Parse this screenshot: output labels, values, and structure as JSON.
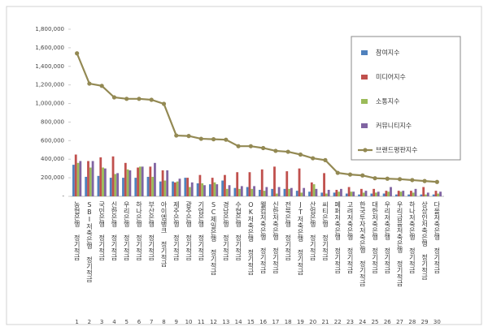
{
  "chart_data": {
    "type": "bar_line",
    "categories": [
      "농협은행 정기적금",
      "SBI저축은행 정기적금",
      "국민은행 정기적금",
      "신한은행 정기적금",
      "우리은행 정기적금",
      "하나은행 정기적금",
      "부산은행 정기적금",
      "아이엠뱅크 정기적금",
      "제주은행 정기적금",
      "광주은행 정기적금",
      "기업은행 정기적금",
      "SC제일은행 정기적금",
      "경남은행 정기적금",
      "수협은행 정기적금",
      "OK저축은행 정기적금",
      "웰컴저축은행 정기적금",
      "신한저축은행 정기적금",
      "전북은행 정기적금",
      "JT저축은행 정기적금",
      "산업은행 정기적금",
      "씨티은행 정기적금",
      "페퍼저축은행 정기적금",
      "고려저축은행 정기적금",
      "한국투자저축은행 정기적금",
      "대한저축은행 정기적금",
      "우리저축은행 정기적금",
      "우리금융저축은행 정기적금",
      "하나저축은행 정기적금",
      "상상인저축은행 정기적금",
      "다올저축은행 정기적금"
    ],
    "ranks": [
      1,
      2,
      3,
      4,
      5,
      6,
      7,
      8,
      9,
      10,
      11,
      12,
      13,
      14,
      15,
      16,
      17,
      18,
      19,
      20,
      21,
      22,
      23,
      24,
      25,
      26,
      27,
      28,
      29,
      30
    ],
    "series": [
      {
        "name": "참여지수",
        "type": "bar",
        "color": "#4f81bd",
        "values": [
          340000,
          210000,
          220000,
          200000,
          200000,
          200000,
          210000,
          160000,
          160000,
          200000,
          140000,
          130000,
          170000,
          90000,
          100000,
          70000,
          80000,
          80000,
          60000,
          50000,
          40000,
          40000,
          30000,
          20000,
          30000,
          30000,
          20000,
          20000,
          20000,
          20000
        ]
      },
      {
        "name": "미디어지수",
        "type": "bar",
        "color": "#c0504d",
        "values": [
          450000,
          380000,
          420000,
          430000,
          360000,
          310000,
          320000,
          280000,
          150000,
          200000,
          230000,
          200000,
          230000,
          260000,
          260000,
          290000,
          320000,
          270000,
          300000,
          150000,
          250000,
          70000,
          100000,
          80000,
          80000,
          60000,
          60000,
          60000,
          100000,
          60000
        ]
      },
      {
        "name": "소통지수",
        "type": "bar",
        "color": "#9bbb59",
        "values": [
          360000,
          310000,
          310000,
          240000,
          290000,
          320000,
          210000,
          170000,
          160000,
          100000,
          140000,
          150000,
          80000,
          80000,
          80000,
          60000,
          30000,
          80000,
          40000,
          130000,
          30000,
          50000,
          50000,
          40000,
          40000,
          50000,
          50000,
          40000,
          20000,
          30000
        ]
      },
      {
        "name": "커뮤니티지수",
        "type": "bar",
        "color": "#8064a2",
        "values": [
          380000,
          380000,
          300000,
          250000,
          280000,
          320000,
          360000,
          280000,
          190000,
          150000,
          120000,
          130000,
          120000,
          110000,
          110000,
          100000,
          100000,
          90000,
          90000,
          80000,
          70000,
          80000,
          50000,
          60000,
          50000,
          100000,
          60000,
          80000,
          40000,
          50000
        ]
      },
      {
        "name": "브랜드평판지수",
        "type": "line",
        "color": "#938953",
        "values": [
          1540000,
          1214000,
          1190000,
          1066000,
          1050000,
          1050000,
          1040000,
          996000,
          655000,
          650000,
          620000,
          615000,
          610000,
          540000,
          540000,
          520000,
          490000,
          480000,
          450000,
          410000,
          390000,
          253000,
          235000,
          225000,
          195000,
          190000,
          185000,
          175000,
          165000,
          155000
        ]
      }
    ],
    "ylim": [
      0,
      1800000
    ],
    "yticks": [
      {
        "value": 0,
        "label": "-"
      },
      {
        "value": 200000,
        "label": "200,000"
      },
      {
        "value": 400000,
        "label": "400,000"
      },
      {
        "value": 600000,
        "label": "600,000"
      },
      {
        "value": 800000,
        "label": "800,000"
      },
      {
        "value": 1000000,
        "label": "1,000,000"
      },
      {
        "value": 1200000,
        "label": "1,200,000"
      },
      {
        "value": 1400000,
        "label": "1,400,000"
      },
      {
        "value": 1600000,
        "label": "1,600,000"
      },
      {
        "value": 1800000,
        "label": "1,800,000"
      }
    ],
    "grid": false,
    "legend": "right"
  }
}
